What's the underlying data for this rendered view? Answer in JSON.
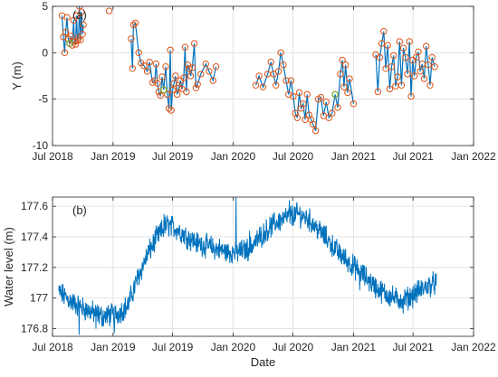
{
  "colors": {
    "line": "#0072bd",
    "marker_orange": "#d95319",
    "marker_green": "#77ac30",
    "grid": "#e3e3e3",
    "axis": "#262626"
  },
  "chart_data": [
    {
      "type": "line",
      "panel_label": "(a)",
      "ylabel": "Y  (m)",
      "xlabel": "",
      "x_ticks": [
        "Jul 2018",
        "Jan 2019",
        "Jul 2019",
        "Jan 2020",
        "Jul 2020",
        "Jan 2021",
        "Jul 2021",
        "Jan 2022"
      ],
      "xlim": [
        "2018-07-01",
        "2022-01-01"
      ],
      "ylim": [
        -10,
        5
      ],
      "y_ticks": [
        -10,
        -5,
        0,
        5
      ],
      "grid": true,
      "markers": "circles",
      "series": [
        {
          "segments": [
            [
              [
                "2018-07-30",
                4.0
              ],
              [
                "2018-08-03",
                1.7
              ],
              [
                "2018-08-07",
                0.0
              ],
              [
                "2018-08-10",
                2.2
              ],
              [
                "2018-08-14",
                3.8
              ],
              [
                "2018-08-18",
                1.5
              ],
              [
                "2018-08-22",
                1.0
              ],
              [
                "2018-08-26",
                1.8
              ],
              [
                "2018-08-30",
                0.8
              ],
              [
                "2018-09-03",
                3.5
              ],
              [
                "2018-09-06",
                1.2
              ],
              [
                "2018-09-09",
                0.9
              ],
              [
                "2018-09-12",
                4.0
              ],
              [
                "2018-09-15",
                1.3
              ],
              [
                "2018-09-18",
                1.6
              ],
              [
                "2018-09-21",
                5.0
              ],
              [
                "2018-09-24",
                1.4
              ],
              [
                "2018-09-27",
                4.4
              ],
              [
                "2018-09-30",
                2.0
              ],
              [
                "2018-10-03",
                3.0
              ]
            ],
            [
              [
                "2018-12-20",
                4.5
              ]
            ],
            [
              [
                "2019-02-25",
                1.5
              ],
              [
                "2019-03-01",
                -1.7
              ],
              [
                "2019-03-04",
                3.0
              ],
              [
                "2019-03-10",
                3.2
              ],
              [
                "2019-03-20",
                0.0
              ],
              [
                "2019-03-27",
                -1.1
              ],
              [
                "2019-04-05",
                -1.4
              ],
              [
                "2019-04-15",
                -2.0
              ],
              [
                "2019-04-22",
                -1.0
              ],
              [
                "2019-05-01",
                -3.2
              ],
              [
                "2019-05-08",
                -3.0
              ],
              [
                "2019-05-12",
                -1.2
              ],
              [
                "2019-05-16",
                -3.3
              ],
              [
                "2019-05-20",
                -4.2
              ],
              [
                "2019-05-25",
                -4.6
              ],
              [
                "2019-05-30",
                -2.6
              ],
              [
                "2019-06-04",
                -4.0
              ],
              [
                "2019-06-10",
                -1.5
              ],
              [
                "2019-06-15",
                -4.5
              ],
              [
                "2019-06-20",
                -6.0
              ],
              [
                "2019-06-24",
                0.3
              ],
              [
                "2019-06-27",
                -6.2
              ],
              [
                "2019-07-01",
                -4.0
              ],
              [
                "2019-07-05",
                -3.3
              ],
              [
                "2019-07-10",
                -2.5
              ],
              [
                "2019-07-15",
                -4.5
              ],
              [
                "2019-07-20",
                -3.8
              ],
              [
                "2019-07-25",
                -3.0
              ],
              [
                "2019-07-30",
                -3.9
              ],
              [
                "2019-08-04",
                -2.7
              ],
              [
                "2019-08-08",
                0.6
              ],
              [
                "2019-08-12",
                -4.2
              ],
              [
                "2019-08-16",
                -1.3
              ],
              [
                "2019-08-20",
                -1.7
              ],
              [
                "2019-08-25",
                -2.5
              ],
              [
                "2019-08-30",
                -1.6
              ],
              [
                "2019-09-05",
                1.0
              ],
              [
                "2019-09-10",
                -3.8
              ],
              [
                "2019-09-15",
                -3.4
              ],
              [
                "2019-09-25",
                -2.3
              ],
              [
                "2019-10-10",
                -1.2
              ],
              [
                "2019-10-20",
                -2.0
              ],
              [
                "2019-11-01",
                -3.0
              ],
              [
                "2019-11-10",
                -1.5
              ]
            ],
            [
              [
                "2020-03-10",
                -3.5
              ],
              [
                "2020-03-20",
                -2.5
              ],
              [
                "2020-04-01",
                -3.7
              ],
              [
                "2020-04-15",
                -2.3
              ],
              [
                "2020-04-25",
                -1.0
              ],
              [
                "2020-05-03",
                -2.3
              ],
              [
                "2020-05-10",
                -3.5
              ],
              [
                "2020-05-18",
                -2.0
              ],
              [
                "2020-05-25",
                0.0
              ],
              [
                "2020-06-02",
                -1.3
              ],
              [
                "2020-06-10",
                -3.0
              ],
              [
                "2020-06-18",
                -4.5
              ],
              [
                "2020-06-25",
                -3.0
              ],
              [
                "2020-07-02",
                -4.7
              ],
              [
                "2020-07-08",
                -6.5
              ],
              [
                "2020-07-14",
                -7.0
              ],
              [
                "2020-07-20",
                -4.3
              ],
              [
                "2020-07-26",
                -6.0
              ],
              [
                "2020-08-01",
                -5.5
              ],
              [
                "2020-08-07",
                -7.2
              ],
              [
                "2020-08-13",
                -4.5
              ],
              [
                "2020-08-19",
                -6.7
              ],
              [
                "2020-08-25",
                -7.2
              ],
              [
                "2020-08-31",
                -7.7
              ],
              [
                "2020-09-08",
                -8.4
              ],
              [
                "2020-09-16",
                -5.0
              ],
              [
                "2020-09-24",
                -4.8
              ],
              [
                "2020-10-02",
                -6.8
              ],
              [
                "2020-10-10",
                -5.3
              ],
              [
                "2020-10-18",
                -7.0
              ],
              [
                "2020-10-28",
                -6.5
              ],
              [
                "2020-11-06",
                -4.5
              ],
              [
                "2020-11-14",
                -5.9
              ],
              [
                "2020-11-22",
                -2.3
              ],
              [
                "2020-11-28",
                -0.8
              ],
              [
                "2020-12-03",
                -3.7
              ],
              [
                "2020-12-08",
                -1.3
              ],
              [
                "2020-12-14",
                -4.3
              ],
              [
                "2020-12-20",
                -2.8
              ],
              [
                "2021-01-01",
                -5.5
              ]
            ],
            [
              [
                "2021-03-10",
                -0.2
              ],
              [
                "2021-03-16",
                -4.2
              ],
              [
                "2021-03-22",
                -0.5
              ],
              [
                "2021-03-28",
                1.0
              ],
              [
                "2021-04-03",
                2.3
              ],
              [
                "2021-04-09",
                -1.7
              ],
              [
                "2021-04-15",
                0.8
              ],
              [
                "2021-04-21",
                -3.9
              ],
              [
                "2021-04-27",
                -1.5
              ],
              [
                "2021-05-03",
                -0.3
              ],
              [
                "2021-05-09",
                -3.6
              ],
              [
                "2021-05-15",
                -2.6
              ],
              [
                "2021-05-21",
                1.2
              ],
              [
                "2021-05-27",
                -3.5
              ],
              [
                "2021-06-02",
                0.5
              ],
              [
                "2021-06-08",
                -0.5
              ],
              [
                "2021-06-14",
                -2.3
              ],
              [
                "2021-06-20",
                1.2
              ],
              [
                "2021-06-25",
                -4.7
              ],
              [
                "2021-06-30",
                -0.8
              ],
              [
                "2021-07-05",
                -2.5
              ],
              [
                "2021-07-11",
                -0.5
              ],
              [
                "2021-07-17",
                0.1
              ],
              [
                "2021-07-23",
                -2.0
              ],
              [
                "2021-07-29",
                -1.2
              ],
              [
                "2021-08-04",
                -2.8
              ],
              [
                "2021-08-10",
                0.7
              ],
              [
                "2021-08-16",
                -1.3
              ],
              [
                "2021-08-22",
                -3.5
              ],
              [
                "2021-08-28",
                -0.5
              ],
              [
                "2021-09-05",
                -1.5
              ]
            ]
          ],
          "green_points": [
            [
              "2018-08-22",
              1.0
            ],
            [
              "2019-06-04",
              -4.0
            ],
            [
              "2020-11-06",
              -4.5
            ]
          ]
        }
      ]
    },
    {
      "type": "line",
      "panel_label": "(b)",
      "ylabel": "Water level (m)",
      "xlabel": "Date",
      "x_ticks": [
        "Jul 2018",
        "Jan 2019",
        "Jul 2019",
        "Jan 2020",
        "Jul 2020",
        "Jan 2021",
        "Jul 2021",
        "Jan 2022"
      ],
      "xlim": [
        "2018-07-01",
        "2022-01-01"
      ],
      "ylim": [
        176.75,
        177.66
      ],
      "y_ticks": [
        "176.8",
        "177",
        "177.2",
        "177.4",
        "177.6"
      ],
      "grid": true,
      "series": [
        {
          "trend": [
            [
              "2018-07-20",
              177.04
            ],
            [
              "2018-09-01",
              176.97
            ],
            [
              "2018-10-15",
              176.92
            ],
            [
              "2018-12-01",
              176.88
            ],
            [
              "2019-01-15",
              176.9
            ],
            [
              "2019-02-15",
              176.95
            ],
            [
              "2019-03-15",
              177.12
            ],
            [
              "2019-04-15",
              177.28
            ],
            [
              "2019-05-15",
              177.4
            ],
            [
              "2019-06-15",
              177.48
            ],
            [
              "2019-07-15",
              177.45
            ],
            [
              "2019-08-15",
              177.4
            ],
            [
              "2019-09-15",
              177.36
            ],
            [
              "2019-10-15",
              177.34
            ],
            [
              "2019-11-15",
              177.32
            ],
            [
              "2019-12-15",
              177.3
            ],
            [
              "2020-01-15",
              177.3
            ],
            [
              "2020-02-15",
              177.32
            ],
            [
              "2020-03-15",
              177.38
            ],
            [
              "2020-04-15",
              177.45
            ],
            [
              "2020-05-15",
              177.5
            ],
            [
              "2020-06-15",
              177.53
            ],
            [
              "2020-07-15",
              177.55
            ],
            [
              "2020-08-15",
              177.52
            ],
            [
              "2020-09-15",
              177.45
            ],
            [
              "2020-10-15",
              177.38
            ],
            [
              "2020-11-15",
              177.3
            ],
            [
              "2020-12-15",
              177.24
            ],
            [
              "2021-01-15",
              177.18
            ],
            [
              "2021-02-15",
              177.12
            ],
            [
              "2021-03-15",
              177.06
            ],
            [
              "2021-04-15",
              177.02
            ],
            [
              "2021-05-15",
              176.99
            ],
            [
              "2021-06-15",
              177.0
            ],
            [
              "2021-07-15",
              177.04
            ],
            [
              "2021-08-15",
              177.08
            ],
            [
              "2021-09-10",
              177.1
            ]
          ],
          "spikes": [
            [
              "2018-09-20",
              176.76
            ],
            [
              "2018-11-10",
              176.8
            ],
            [
              "2019-01-05",
              176.77
            ],
            [
              "2020-01-10",
              177.66
            ],
            [
              "2019-06-05",
              177.55
            ],
            [
              "2020-06-20",
              177.64
            ],
            [
              "2020-02-20",
              177.44
            ],
            [
              "2021-01-20",
              177.05
            ],
            [
              "2021-06-01",
              176.9
            ]
          ]
        }
      ]
    }
  ]
}
